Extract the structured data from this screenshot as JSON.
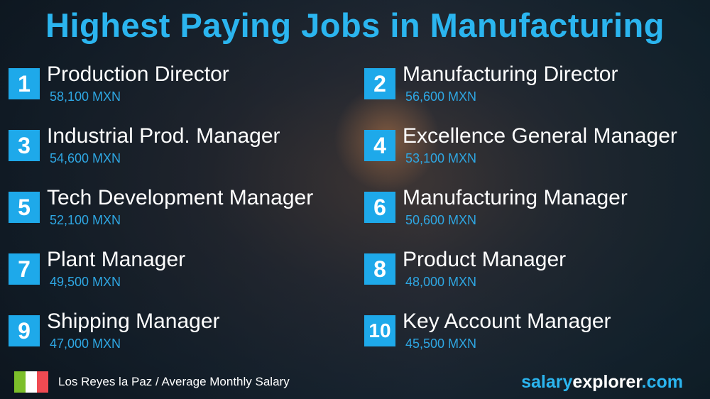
{
  "title": "Highest Paying Jobs in Manufacturing",
  "jobs": [
    {
      "rank": "1",
      "title": "Production Director",
      "salary": "58,100 MXN"
    },
    {
      "rank": "2",
      "title": "Manufacturing Director",
      "salary": "56,600 MXN"
    },
    {
      "rank": "3",
      "title": "Industrial Prod. Manager",
      "salary": "54,600 MXN"
    },
    {
      "rank": "4",
      "title": "Excellence General Manager",
      "salary": "53,100 MXN"
    },
    {
      "rank": "5",
      "title": "Tech Development Manager",
      "salary": "52,100 MXN"
    },
    {
      "rank": "6",
      "title": "Manufacturing Manager",
      "salary": "50,600 MXN"
    },
    {
      "rank": "7",
      "title": "Plant Manager",
      "salary": "49,500 MXN"
    },
    {
      "rank": "8",
      "title": "Product Manager",
      "salary": "48,000 MXN"
    },
    {
      "rank": "9",
      "title": "Shipping Manager",
      "salary": "47,000 MXN"
    },
    {
      "rank": "10",
      "title": "Key Account Manager",
      "salary": "45,500 MXN"
    }
  ],
  "footer": {
    "location": "Los Reyes la Paz / Average Monthly Salary",
    "flag": "mexico-flag-icon",
    "brand": {
      "part1": "salary",
      "part2": "explorer",
      "part3": ".com"
    }
  },
  "colors": {
    "accent": "#1ea9ea",
    "brand_blue": "#2bb5ef",
    "flag_green": "#7cbf2a",
    "flag_red": "#f04a52"
  }
}
